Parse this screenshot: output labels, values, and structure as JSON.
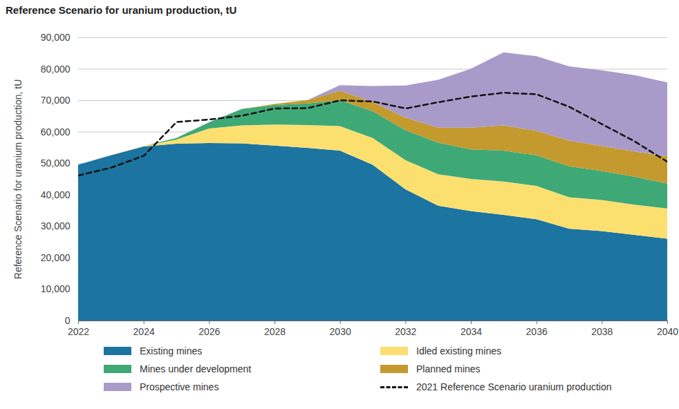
{
  "chart_data": {
    "type": "area",
    "title": "Reference Scenario for uranium production, tU",
    "y_label": "Reference Scenario for uranium production, tU",
    "stacked": true,
    "grid": true,
    "legend": "bottom",
    "x": [
      2022,
      2023,
      2024,
      2025,
      2026,
      2027,
      2028,
      2029,
      2030,
      2031,
      2032,
      2033,
      2034,
      2035,
      2036,
      2037,
      2038,
      2039,
      2040
    ],
    "xlim": [
      2022,
      2040
    ],
    "xticks": [
      2022,
      2024,
      2026,
      2028,
      2030,
      2032,
      2034,
      2036,
      2038,
      2040
    ],
    "ylim": [
      0,
      90000
    ],
    "yticks": [
      0,
      {
        "value": 10000,
        "label": "10,000"
      },
      {
        "value": 20000,
        "label": "20,000"
      },
      {
        "value": 30000,
        "label": "30,000"
      },
      {
        "value": 40000,
        "label": "40,000"
      },
      {
        "value": 50000,
        "label": "50,000"
      },
      {
        "value": 60000,
        "label": "60,000"
      },
      {
        "value": 70000,
        "label": "70,000"
      },
      {
        "value": 80000,
        "label": "80,000"
      },
      {
        "value": 90000,
        "label": "90,000"
      }
    ],
    "series": [
      {
        "name": "Existing mines",
        "color": "#1c74a1",
        "values": [
          49500,
          52500,
          55300,
          56200,
          56400,
          56300,
          55600,
          54900,
          54000,
          49500,
          41700,
          36500,
          34800,
          33600,
          32200,
          29200,
          28400,
          27200,
          26000
        ]
      },
      {
        "name": "Idled existing mines",
        "color": "#fbe070",
        "values": [
          0,
          0,
          200,
          1300,
          4600,
          5700,
          6700,
          7200,
          7800,
          8500,
          9300,
          10000,
          10200,
          10600,
          10600,
          10000,
          9900,
          9600,
          9600
        ]
      },
      {
        "name": "Mines under development",
        "color": "#3fa877",
        "values": [
          0,
          0,
          0,
          500,
          2000,
          5200,
          6200,
          6900,
          8200,
          8500,
          9500,
          10000,
          9400,
          9800,
          9700,
          9800,
          9200,
          8900,
          7900
        ]
      },
      {
        "name": "Planned mines",
        "color": "#c49a2f",
        "values": [
          0,
          0,
          0,
          0,
          0,
          0,
          300,
          1000,
          3000,
          3000,
          4000,
          4800,
          6900,
          8000,
          7800,
          8200,
          8000,
          8000,
          8700
        ]
      },
      {
        "name": "Prospective mines",
        "color": "#a99bc9",
        "values": [
          0,
          0,
          0,
          0,
          0,
          0,
          0,
          0,
          1800,
          5000,
          10200,
          15200,
          18700,
          23200,
          23700,
          23600,
          24000,
          24300,
          23500
        ]
      },
      {
        "name": "2021 Reference Scenario uranium production",
        "type": "line",
        "line_style": "dashed",
        "color": "#111111",
        "values": [
          46200,
          48700,
          52500,
          63200,
          64000,
          65200,
          67500,
          67600,
          70100,
          69700,
          67500,
          69500,
          71300,
          72500,
          72000,
          68000,
          62500,
          57000,
          50500
        ]
      }
    ]
  }
}
